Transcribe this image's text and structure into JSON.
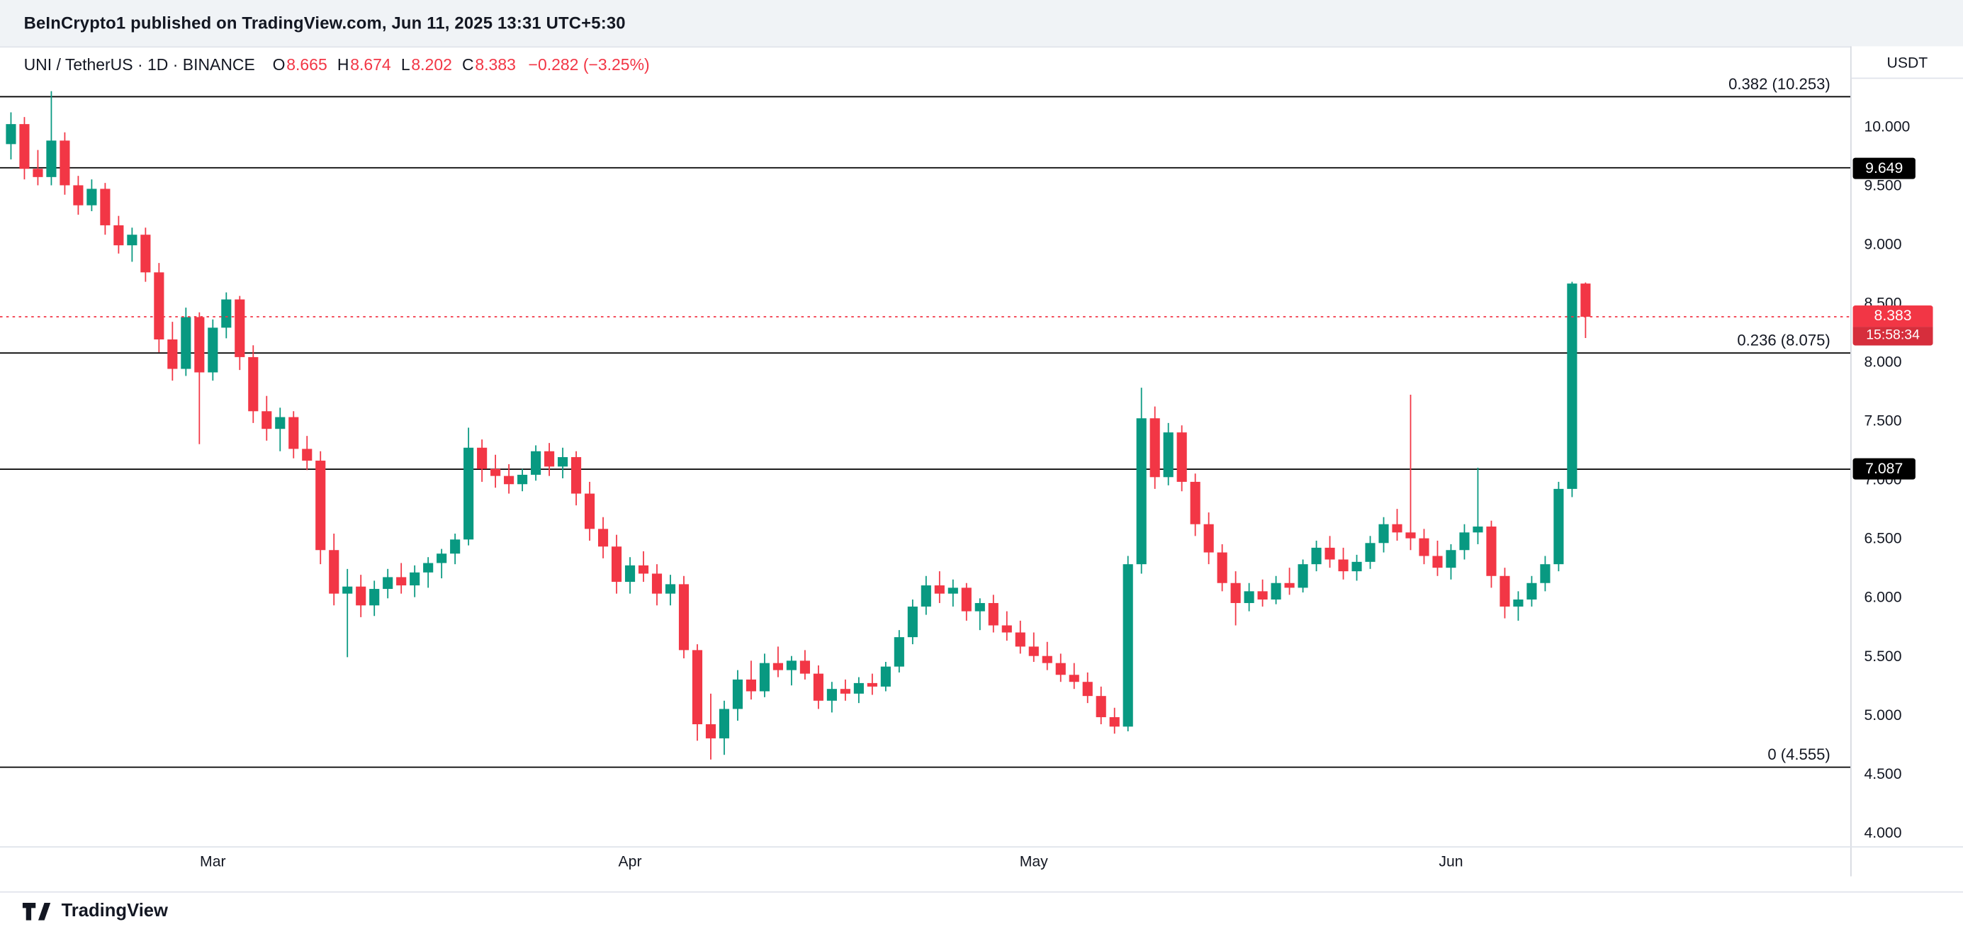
{
  "published_bar": {
    "text": "BeInCrypto1 published on TradingView.com, Jun 11, 2025 13:31 UTC+5:30"
  },
  "header": {
    "title": "UNI / TetherUS · 1D · BINANCE",
    "ohlc": [
      {
        "label": "O",
        "value": "8.665"
      },
      {
        "label": "H",
        "value": "8.674"
      },
      {
        "label": "L",
        "value": "8.202"
      },
      {
        "label": "C",
        "value": "8.383"
      }
    ],
    "change": "−0.282 (−3.25%)"
  },
  "price_scale": {
    "currency": "USDT"
  },
  "attribution": {
    "text": "TradingView"
  },
  "chart_data": {
    "type": "candlestick",
    "title": "UNI / TetherUS · 1D · BINANCE",
    "up_color": "#089981",
    "down_color": "#f23645",
    "ylim": [
      3.883,
      10.415
    ],
    "y_ticks": [
      "10.000",
      "9.500",
      "9.000",
      "8.500",
      "8.000",
      "7.500",
      "7.000",
      "6.500",
      "6.000",
      "5.500",
      "5.000",
      "4.500",
      "4.000"
    ],
    "x_ticks": [
      {
        "label": "Mar",
        "candle_index": 15
      },
      {
        "label": "Apr",
        "candle_index": 46
      },
      {
        "label": "May",
        "candle_index": 76
      },
      {
        "label": "Jun",
        "candle_index": 107
      }
    ],
    "levels": [
      {
        "label": "0.382 (10.253)",
        "price": 10.253,
        "chart_label": true,
        "axis_badge": false
      },
      {
        "label": "9.649",
        "price": 9.649,
        "chart_label": false,
        "axis_badge": true
      },
      {
        "label": "0.236 (8.075)",
        "price": 8.075,
        "chart_label": true,
        "axis_badge": false
      },
      {
        "label": "7.087",
        "price": 7.087,
        "chart_label": false,
        "axis_badge": true
      },
      {
        "label": "0 (4.555)",
        "price": 4.555,
        "chart_label": true,
        "axis_badge": false
      }
    ],
    "current_price": {
      "label": "8.383",
      "price": 8.383,
      "countdown": "15:58:34",
      "color": "#f23645"
    },
    "candles": [
      [
        9.85,
        10.12,
        9.72,
        10.02
      ],
      [
        10.02,
        10.08,
        9.55,
        9.64
      ],
      [
        9.64,
        9.8,
        9.5,
        9.57
      ],
      [
        9.57,
        10.3,
        9.5,
        9.88
      ],
      [
        9.88,
        9.95,
        9.42,
        9.5
      ],
      [
        9.5,
        9.58,
        9.25,
        9.33
      ],
      [
        9.33,
        9.55,
        9.28,
        9.47
      ],
      [
        9.47,
        9.52,
        9.08,
        9.16
      ],
      [
        9.16,
        9.24,
        8.92,
        8.99
      ],
      [
        8.99,
        9.14,
        8.85,
        9.08
      ],
      [
        9.08,
        9.14,
        8.68,
        8.76
      ],
      [
        8.76,
        8.84,
        8.08,
        8.19
      ],
      [
        8.19,
        8.34,
        7.84,
        7.94
      ],
      [
        7.94,
        8.46,
        7.88,
        8.38
      ],
      [
        8.38,
        8.42,
        7.3,
        7.91
      ],
      [
        7.91,
        8.36,
        7.84,
        8.29
      ],
      [
        8.29,
        8.59,
        8.2,
        8.53
      ],
      [
        8.53,
        8.56,
        7.93,
        8.04
      ],
      [
        8.04,
        8.14,
        7.48,
        7.58
      ],
      [
        7.58,
        7.71,
        7.33,
        7.43
      ],
      [
        7.43,
        7.61,
        7.24,
        7.53
      ],
      [
        7.53,
        7.58,
        7.18,
        7.26
      ],
      [
        7.26,
        7.37,
        7.08,
        7.16
      ],
      [
        7.16,
        7.24,
        6.28,
        6.4
      ],
      [
        6.4,
        6.54,
        5.93,
        6.03
      ],
      [
        6.03,
        6.24,
        5.49,
        6.09
      ],
      [
        6.09,
        6.19,
        5.83,
        5.93
      ],
      [
        5.93,
        6.14,
        5.84,
        6.07
      ],
      [
        6.07,
        6.24,
        5.99,
        6.17
      ],
      [
        6.17,
        6.29,
        6.03,
        6.1
      ],
      [
        6.1,
        6.27,
        6.0,
        6.21
      ],
      [
        6.21,
        6.34,
        6.08,
        6.29
      ],
      [
        6.29,
        6.41,
        6.16,
        6.37
      ],
      [
        6.37,
        6.54,
        6.28,
        6.49
      ],
      [
        6.49,
        7.44,
        6.44,
        7.27
      ],
      [
        7.27,
        7.34,
        6.98,
        7.09
      ],
      [
        7.09,
        7.21,
        6.93,
        7.03
      ],
      [
        7.03,
        7.13,
        6.88,
        6.96
      ],
      [
        6.96,
        7.09,
        6.9,
        7.04
      ],
      [
        7.04,
        7.29,
        6.99,
        7.24
      ],
      [
        7.24,
        7.31,
        7.03,
        7.11
      ],
      [
        7.11,
        7.27,
        7.01,
        7.19
      ],
      [
        7.19,
        7.24,
        6.78,
        6.88
      ],
      [
        6.88,
        6.98,
        6.48,
        6.58
      ],
      [
        6.58,
        6.68,
        6.33,
        6.43
      ],
      [
        6.43,
        6.53,
        6.03,
        6.13
      ],
      [
        6.13,
        6.34,
        6.03,
        6.27
      ],
      [
        6.27,
        6.39,
        6.13,
        6.2
      ],
      [
        6.2,
        6.28,
        5.93,
        6.03
      ],
      [
        6.03,
        6.19,
        5.93,
        6.11
      ],
      [
        6.11,
        6.18,
        5.48,
        5.55
      ],
      [
        5.55,
        5.6,
        4.78,
        4.92
      ],
      [
        4.92,
        5.18,
        4.62,
        4.8
      ],
      [
        4.8,
        5.12,
        4.66,
        5.05
      ],
      [
        5.05,
        5.38,
        4.95,
        5.3
      ],
      [
        5.3,
        5.46,
        5.13,
        5.2
      ],
      [
        5.2,
        5.52,
        5.15,
        5.44
      ],
      [
        5.44,
        5.58,
        5.32,
        5.38
      ],
      [
        5.38,
        5.5,
        5.25,
        5.46
      ],
      [
        5.46,
        5.55,
        5.3,
        5.35
      ],
      [
        5.35,
        5.42,
        5.05,
        5.12
      ],
      [
        5.12,
        5.28,
        5.02,
        5.22
      ],
      [
        5.22,
        5.3,
        5.12,
        5.18
      ],
      [
        5.18,
        5.32,
        5.1,
        5.27
      ],
      [
        5.27,
        5.35,
        5.17,
        5.24
      ],
      [
        5.24,
        5.45,
        5.2,
        5.41
      ],
      [
        5.41,
        5.72,
        5.36,
        5.66
      ],
      [
        5.66,
        5.98,
        5.6,
        5.92
      ],
      [
        5.92,
        6.18,
        5.85,
        6.1
      ],
      [
        6.1,
        6.22,
        5.95,
        6.03
      ],
      [
        6.03,
        6.15,
        5.92,
        6.08
      ],
      [
        6.08,
        6.12,
        5.8,
        5.88
      ],
      [
        5.88,
        5.99,
        5.72,
        5.95
      ],
      [
        5.95,
        6.02,
        5.7,
        5.76
      ],
      [
        5.76,
        5.88,
        5.63,
        5.7
      ],
      [
        5.7,
        5.8,
        5.52,
        5.58
      ],
      [
        5.58,
        5.7,
        5.45,
        5.5
      ],
      [
        5.5,
        5.62,
        5.38,
        5.44
      ],
      [
        5.44,
        5.52,
        5.28,
        5.34
      ],
      [
        5.34,
        5.44,
        5.22,
        5.28
      ],
      [
        5.28,
        5.36,
        5.1,
        5.16
      ],
      [
        5.16,
        5.24,
        4.92,
        4.98
      ],
      [
        4.98,
        5.06,
        4.84,
        4.9
      ],
      [
        4.9,
        6.35,
        4.86,
        6.28
      ],
      [
        6.28,
        7.78,
        6.2,
        7.52
      ],
      [
        7.52,
        7.62,
        6.92,
        7.02
      ],
      [
        7.02,
        7.48,
        6.95,
        7.4
      ],
      [
        7.4,
        7.46,
        6.9,
        6.98
      ],
      [
        6.98,
        7.05,
        6.52,
        6.62
      ],
      [
        6.62,
        6.72,
        6.28,
        6.38
      ],
      [
        6.38,
        6.45,
        6.05,
        6.12
      ],
      [
        6.12,
        6.22,
        5.76,
        5.95
      ],
      [
        5.95,
        6.12,
        5.88,
        6.05
      ],
      [
        6.05,
        6.15,
        5.92,
        5.98
      ],
      [
        5.98,
        6.18,
        5.94,
        6.12
      ],
      [
        6.12,
        6.25,
        6.02,
        6.08
      ],
      [
        6.08,
        6.32,
        6.04,
        6.28
      ],
      [
        6.28,
        6.48,
        6.22,
        6.42
      ],
      [
        6.42,
        6.52,
        6.25,
        6.32
      ],
      [
        6.32,
        6.42,
        6.15,
        6.22
      ],
      [
        6.22,
        6.36,
        6.14,
        6.3
      ],
      [
        6.3,
        6.52,
        6.24,
        6.46
      ],
      [
        6.46,
        6.68,
        6.38,
        6.62
      ],
      [
        6.62,
        6.75,
        6.48,
        6.55
      ],
      [
        6.55,
        7.72,
        6.4,
        6.5
      ],
      [
        6.5,
        6.58,
        6.28,
        6.35
      ],
      [
        6.35,
        6.48,
        6.18,
        6.25
      ],
      [
        6.25,
        6.45,
        6.15,
        6.4
      ],
      [
        6.4,
        6.62,
        6.32,
        6.55
      ],
      [
        6.55,
        7.1,
        6.45,
        6.6
      ],
      [
        6.6,
        6.65,
        6.08,
        6.18
      ],
      [
        6.18,
        6.25,
        5.82,
        5.92
      ],
      [
        5.92,
        6.05,
        5.8,
        5.98
      ],
      [
        5.98,
        6.18,
        5.92,
        6.12
      ],
      [
        6.12,
        6.35,
        6.05,
        6.28
      ],
      [
        6.28,
        6.98,
        6.22,
        6.92
      ],
      [
        6.92,
        8.68,
        6.85,
        8.665
      ],
      [
        8.665,
        8.674,
        8.202,
        8.383
      ]
    ]
  }
}
